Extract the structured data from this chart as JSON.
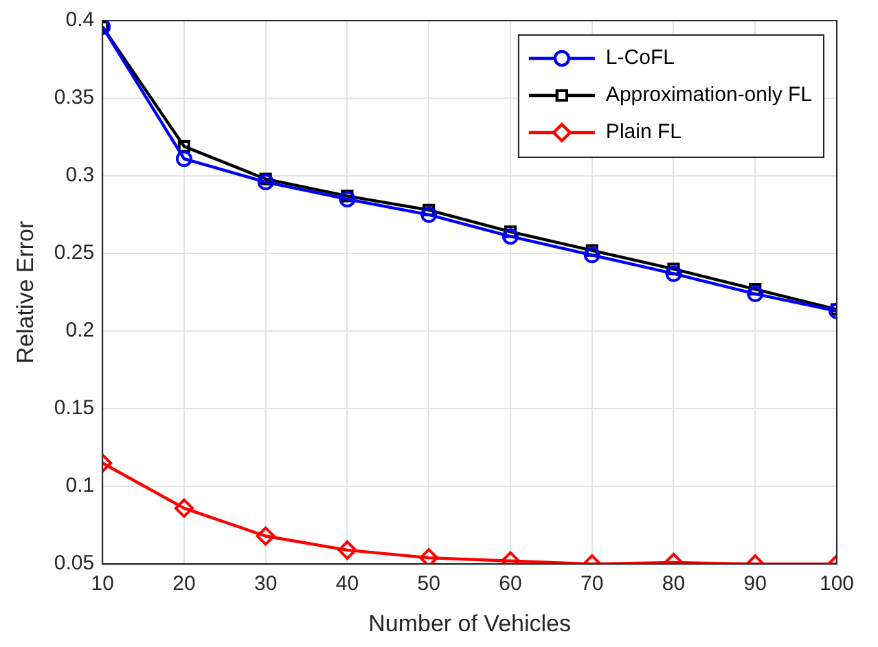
{
  "chart_data": {
    "type": "line",
    "xlabel": "Number of Vehicles",
    "ylabel": "Relative Error",
    "x": [
      10,
      20,
      30,
      40,
      50,
      60,
      70,
      80,
      90,
      100
    ],
    "series": [
      {
        "name": "L-CoFL",
        "color": "#0000ff",
        "marker": "circle",
        "values": [
          0.396,
          0.311,
          0.296,
          0.285,
          0.275,
          0.261,
          0.249,
          0.237,
          0.224,
          0.213
        ]
      },
      {
        "name": "Approximation-only FL",
        "color": "#000000",
        "marker": "square",
        "values": [
          0.396,
          0.319,
          0.298,
          0.287,
          0.278,
          0.264,
          0.252,
          0.24,
          0.227,
          0.214
        ]
      },
      {
        "name": "Plain FL",
        "color": "#ff0000",
        "marker": "diamond",
        "values": [
          0.115,
          0.086,
          0.068,
          0.059,
          0.054,
          0.052,
          0.05,
          0.051,
          0.05,
          0.05
        ]
      }
    ],
    "xlim": [
      10,
      100
    ],
    "xticks": [
      10,
      20,
      30,
      40,
      50,
      60,
      70,
      80,
      90,
      100
    ],
    "ylim": [
      0.05,
      0.4
    ],
    "yticks": [
      0.05,
      0.1,
      0.15,
      0.2,
      0.25,
      0.3,
      0.35,
      0.4
    ],
    "grid": true,
    "legend": "top right",
    "line_style": "solid"
  }
}
